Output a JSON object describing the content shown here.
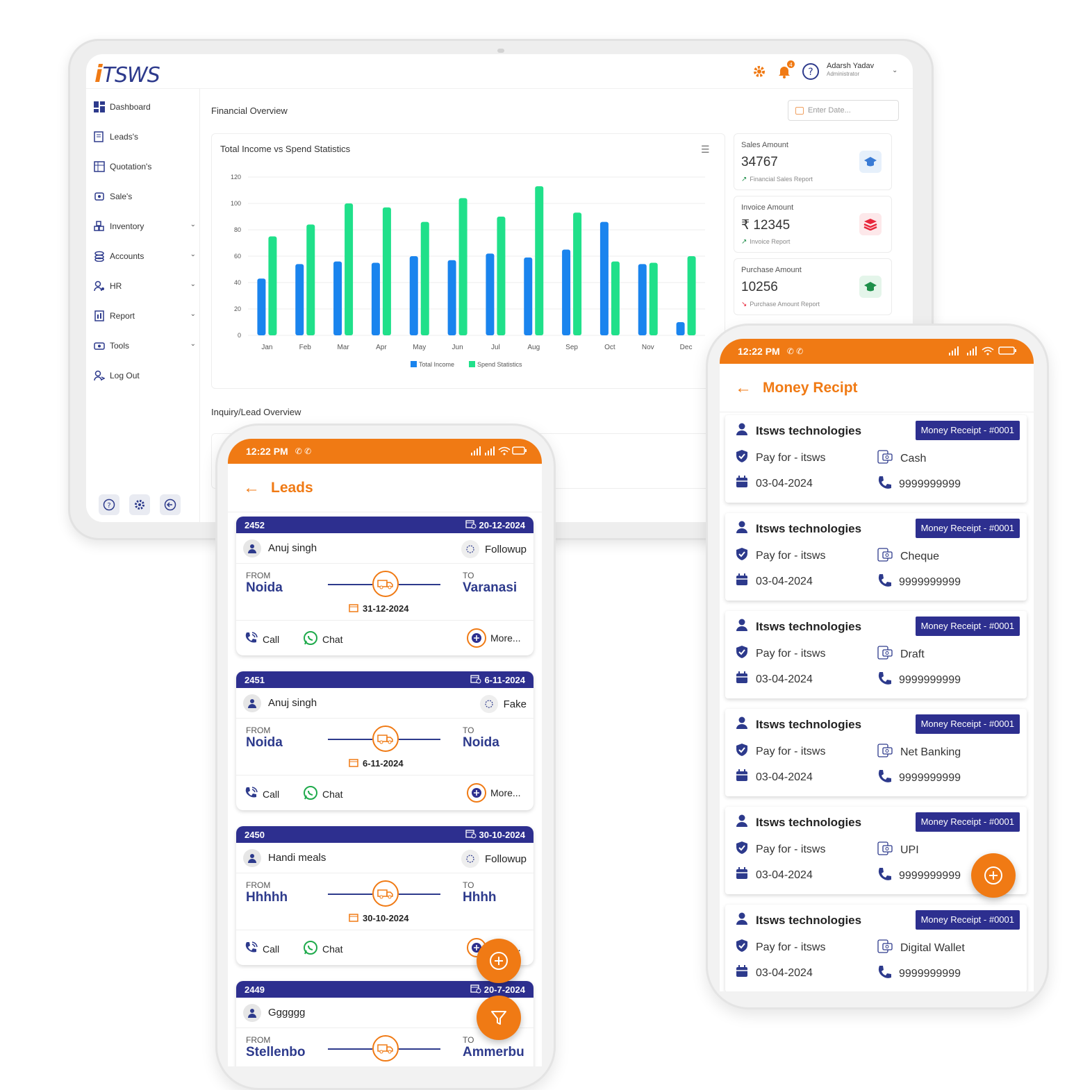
{
  "colors": {
    "accent": "#f07a14",
    "primary": "#2d2f8f",
    "income": "#1a84ee",
    "spend": "#20e08a"
  },
  "dashboard": {
    "logo_i": "i",
    "logo_rest": "TSWS",
    "user_name": "Adarsh Yadav",
    "user_role": "Administrator",
    "notification_count": "4",
    "sidebar": [
      "Dashboard",
      "Leads's",
      "Quotation's",
      "Sale's",
      "Inventory",
      "Accounts",
      "HR",
      "Report",
      "Tools",
      "Log Out"
    ],
    "financial_title": "Financial Overview",
    "date_placeholder": "Enter Date...",
    "chart_title": "Total Income vs Spend Statistics",
    "inquiry_title": "Inquiry/Lead Overview",
    "kpis": [
      {
        "label": "Sales Amount",
        "value": "34767",
        "sub": "Financial Sales Report",
        "icon": "graduation-cap-icon",
        "color": "#3a7bd5",
        "bg": "#e6f0fb",
        "trend": "up"
      },
      {
        "label": "Invoice Amount",
        "value": "₹ 12345",
        "sub": "Invoice Report",
        "icon": "layers-icon",
        "color": "#e8263b",
        "bg": "#fde8ea",
        "trend": "up"
      },
      {
        "label": "Purchase Amount",
        "value": "10256",
        "sub": "Purchase Amount Report",
        "icon": "graduation-cap-icon",
        "color": "#1f8f4a",
        "bg": "#e4f5ea",
        "trend": "down"
      }
    ]
  },
  "chart_data": {
    "type": "bar",
    "title": "Total Income vs Spend Statistics",
    "categories": [
      "Jan",
      "Feb",
      "Mar",
      "Apr",
      "May",
      "Jun",
      "Jul",
      "Aug",
      "Sep",
      "Oct",
      "Nov",
      "Dec"
    ],
    "series": [
      {
        "name": "Total Income",
        "values": [
          43,
          54,
          56,
          55,
          60,
          57,
          62,
          59,
          65,
          86,
          54,
          10
        ]
      },
      {
        "name": "Spend Statistics",
        "values": [
          75,
          84,
          100,
          97,
          86,
          104,
          90,
          113,
          93,
          56,
          55,
          60
        ]
      }
    ],
    "ylim": [
      0,
      120
    ],
    "yticks": [
      0,
      20,
      40,
      60,
      80,
      100,
      120
    ],
    "legend": "bottom",
    "grid": true
  },
  "leads": {
    "time": "12:22 PM",
    "title": "Leads",
    "from_label": "FROM",
    "to_label": "TO",
    "call_label": "Call",
    "chat_label": "Chat",
    "more_label": "More...",
    "items": [
      {
        "id": "2452",
        "date": "20-12-2024",
        "name": "Anuj singh",
        "status": "Followup",
        "from": "Noida",
        "to": "Varanasi",
        "travel_date": "31-12-2024"
      },
      {
        "id": "2451",
        "date": "6-11-2024",
        "name": "Anuj singh",
        "status": "Fake",
        "from": "Noida",
        "to": "Noida",
        "travel_date": "6-11-2024"
      },
      {
        "id": "2450",
        "date": "30-10-2024",
        "name": "Handi meals",
        "status": "Followup",
        "from": "Hhhhh",
        "to": "Hhhh",
        "travel_date": "30-10-2024"
      },
      {
        "id": "2449",
        "date": "20-7-2024",
        "name": "Gggggg",
        "status": "",
        "from": "Stellenbo",
        "to": "Ammerbu",
        "travel_date": ""
      }
    ]
  },
  "receipts": {
    "time": "12:22 PM",
    "title": "Money Recipt",
    "items": [
      {
        "name": "Itsws technologies",
        "badge": "Money Receipt - #0001",
        "pay_for": "Pay for - itsws",
        "mode": "Cash",
        "date": "03-04-2024",
        "phone": "9999999999"
      },
      {
        "name": "Itsws technologies",
        "badge": "Money Receipt - #0001",
        "pay_for": "Pay for - itsws",
        "mode": "Cheque",
        "date": "03-04-2024",
        "phone": "9999999999"
      },
      {
        "name": "Itsws technologies",
        "badge": "Money Receipt - #0001",
        "pay_for": "Pay for - itsws",
        "mode": "Draft",
        "date": "03-04-2024",
        "phone": "9999999999"
      },
      {
        "name": "Itsws technologies",
        "badge": "Money Receipt - #0001",
        "pay_for": "Pay for - itsws",
        "mode": "Net Banking",
        "date": "03-04-2024",
        "phone": "9999999999"
      },
      {
        "name": "Itsws technologies",
        "badge": "Money Receipt - #0001",
        "pay_for": "Pay for - itsws",
        "mode": "UPI",
        "date": "03-04-2024",
        "phone": "9999999999"
      },
      {
        "name": "Itsws technologies",
        "badge": "Money Receipt - #0001",
        "pay_for": "Pay for - itsws",
        "mode": "Digital Wallet",
        "date": "03-04-2024",
        "phone": "9999999999"
      }
    ]
  }
}
